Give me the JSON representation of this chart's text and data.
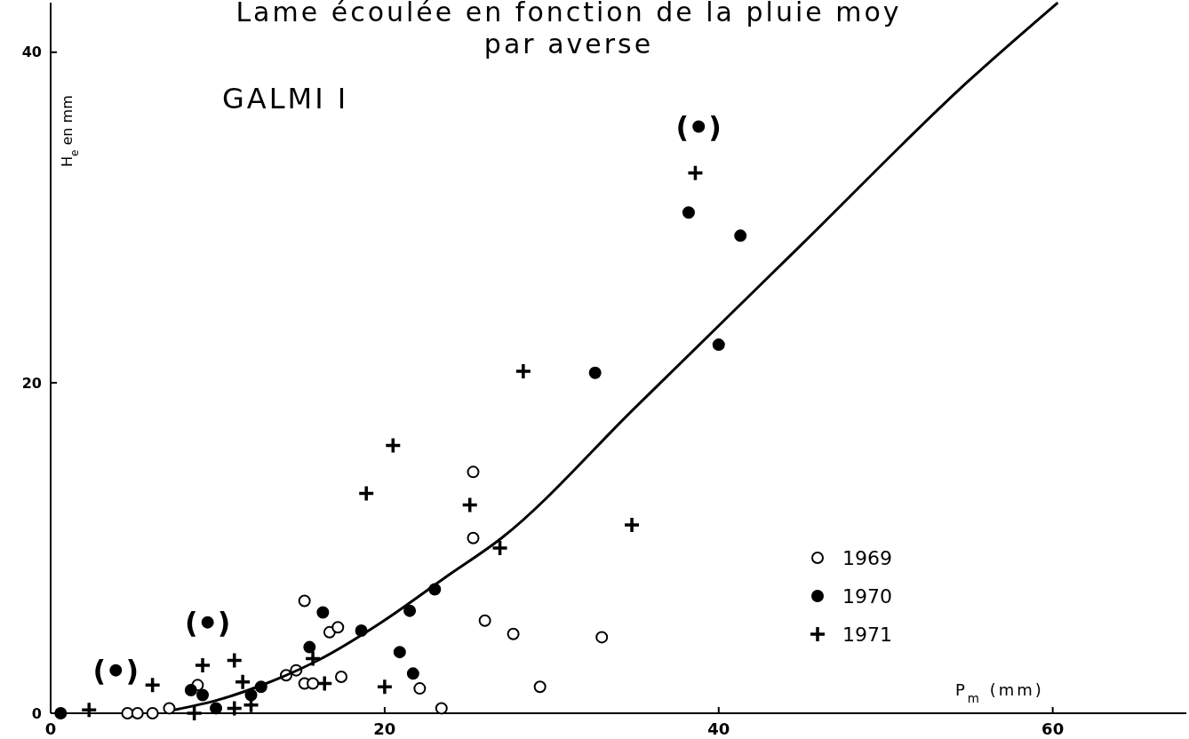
{
  "chart_data": {
    "type": "scatter",
    "title": "Lame écoulée en fonction de la pluie moy",
    "subtitle": "par averse",
    "xlabel": "P$_{m}$ (mm)",
    "ylabel": "H$_{e}$ en mm",
    "xlim": [
      0,
      68
    ],
    "ylim": [
      0,
      43
    ],
    "xticks": [
      0,
      20,
      40,
      60
    ],
    "yticks": [
      0,
      20,
      40
    ],
    "grid": false,
    "legend": "bottom right",
    "annotations": [
      "GALMI I",
      {
        "text": "(  )",
        "x": 3.9,
        "y": 2.6
      },
      {
        "text": "(  )",
        "x": 9.4,
        "y": 5.5
      },
      {
        "text": "(  )",
        "x": 38.8,
        "y": 35.5
      }
    ],
    "series": [
      {
        "name": "1969",
        "color": "#ffffff",
        "marker": "circle",
        "x": [
          4.6,
          5.2,
          6.1,
          7.1,
          8.8,
          14.1,
          14.7,
          15.2,
          15.2,
          15.7,
          16.7,
          17.2,
          17.4,
          22.1,
          23.4,
          25.3,
          25.3,
          26.0,
          27.7,
          29.3,
          33.0
        ],
        "values": [
          0,
          0,
          0,
          0.3,
          1.7,
          2.3,
          2.6,
          6.8,
          1.8,
          1.8,
          4.9,
          5.2,
          2.2,
          1.5,
          0.3,
          14.6,
          10.6,
          5.6,
          4.8,
          1.6,
          4.6
        ]
      },
      {
        "name": "1970",
        "color": "#000000",
        "marker": "circle",
        "x": [
          0.6,
          3.9,
          8.4,
          9.1,
          9.4,
          9.9,
          12.0,
          12.6,
          15.5,
          16.3,
          18.6,
          20.9,
          21.5,
          21.7,
          23.0,
          32.6,
          38.2,
          38.8,
          40.0,
          41.3
        ],
        "values": [
          0,
          2.6,
          1.4,
          1.1,
          5.5,
          0.3,
          1.1,
          1.6,
          4.0,
          6.1,
          5.0,
          3.7,
          6.2,
          2.4,
          7.5,
          20.6,
          30.3,
          35.5,
          22.3,
          28.9
        ]
      },
      {
        "name": "1971",
        "color": "#000000",
        "marker": "cross",
        "x": [
          2.3,
          6.1,
          8.6,
          9.1,
          11.0,
          11.0,
          11.5,
          12.0,
          15.7,
          16.4,
          18.9,
          20.0,
          20.5,
          25.1,
          26.9,
          28.3,
          34.8,
          38.6
        ],
        "values": [
          0.2,
          1.7,
          0,
          2.9,
          3.2,
          0.3,
          1.9,
          0.5,
          3.3,
          1.8,
          13.3,
          1.6,
          16.2,
          12.6,
          10.0,
          20.7,
          11.4,
          32.7
        ]
      },
      {
        "type": "line",
        "color": "#000000",
        "marker": "none",
        "line_style": "solid",
        "x": [
          7.4,
          10,
          12.9,
          16,
          19.8,
          23.6,
          27,
          35,
          45,
          55,
          60.3
        ],
        "values": [
          0.2,
          0.8,
          1.8,
          3.2,
          5.5,
          8.2,
          10.6,
          18.5,
          28.4,
          38.3,
          43
        ]
      }
    ]
  }
}
